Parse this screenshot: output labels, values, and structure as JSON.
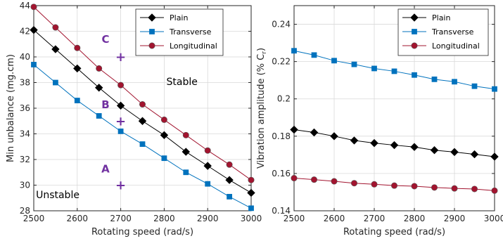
{
  "colors": {
    "plain": "#000000",
    "transverse": "#0072BD",
    "longitudinal": "#A2142F",
    "annotation": "#7030A0",
    "grid": "#d9d9d9",
    "axis": "#262626"
  },
  "chart_data": [
    {
      "type": "line",
      "xlabel": "Rotating speed (rad/s)",
      "ylabel": "Min unbalance (mg.cm)",
      "xlim": [
        2500,
        3000
      ],
      "ylim": [
        28,
        44
      ],
      "xticks": [
        2500,
        2600,
        2700,
        2800,
        2900,
        3000
      ],
      "yticks": [
        28,
        30,
        32,
        34,
        36,
        38,
        40,
        42,
        44
      ],
      "grid": true,
      "legend": "top-right",
      "x": [
        2500,
        2550,
        2600,
        2650,
        2700,
        2750,
        2800,
        2850,
        2900,
        2950,
        3000
      ],
      "series": [
        {
          "name": "Plain",
          "marker": "diamond",
          "color_key": "plain",
          "values": [
            42.1,
            40.6,
            39.1,
            37.6,
            36.2,
            35.0,
            33.9,
            32.6,
            31.5,
            30.4,
            29.4
          ]
        },
        {
          "name": "Transverse",
          "marker": "square",
          "color_key": "transverse",
          "values": [
            39.4,
            38.0,
            36.6,
            35.4,
            34.2,
            33.2,
            32.1,
            31.0,
            30.1,
            29.1,
            28.2
          ]
        },
        {
          "name": "Longitudinal",
          "marker": "circle",
          "color_key": "longitudinal",
          "values": [
            43.9,
            42.3,
            40.7,
            39.1,
            37.8,
            36.3,
            35.1,
            33.9,
            32.7,
            31.6,
            30.4
          ]
        }
      ],
      "annotations": [
        {
          "text": "C",
          "x": 2665,
          "y": 41.1,
          "style": "letter"
        },
        {
          "text": "+",
          "x": 2700,
          "y": 40.0,
          "style": "plus"
        },
        {
          "text": "B",
          "x": 2665,
          "y": 36.0,
          "style": "letter"
        },
        {
          "text": "+",
          "x": 2700,
          "y": 35.0,
          "style": "plus"
        },
        {
          "text": "A",
          "x": 2665,
          "y": 31.0,
          "style": "letter"
        },
        {
          "text": "+",
          "x": 2700,
          "y": 30.0,
          "style": "plus"
        },
        {
          "text": "Stable",
          "x": 2805,
          "y": 37.8,
          "style": "label"
        },
        {
          "text": "Unstable",
          "x": 2505,
          "y": 29.0,
          "style": "label"
        }
      ]
    },
    {
      "type": "line",
      "xlabel": "Rotating speed (rad/s)",
      "ylabel": "Vibration amplitude (% C",
      "ylabel_sub": "r",
      "ylabel_end": ")",
      "xlim": [
        2500,
        3000
      ],
      "ylim": [
        0.14,
        0.25
      ],
      "xticks": [
        2500,
        2600,
        2700,
        2800,
        2900,
        3000
      ],
      "yticks": [
        0.14,
        0.16,
        0.18,
        0.2,
        0.22,
        0.24
      ],
      "grid": true,
      "legend": "top-right",
      "x": [
        2500,
        2550,
        2600,
        2650,
        2700,
        2750,
        2800,
        2850,
        2900,
        2950,
        3000
      ],
      "series": [
        {
          "name": "Plain",
          "marker": "diamond",
          "color_key": "plain",
          "values": [
            0.1835,
            0.182,
            0.18,
            0.1777,
            0.1763,
            0.1752,
            0.1742,
            0.1725,
            0.1715,
            0.1703,
            0.169
          ]
        },
        {
          "name": "Transverse",
          "marker": "square",
          "color_key": "transverse",
          "values": [
            0.2258,
            0.2235,
            0.2205,
            0.2185,
            0.2163,
            0.2148,
            0.2128,
            0.2105,
            0.2092,
            0.2068,
            0.2053
          ]
        },
        {
          "name": "Longitudinal",
          "marker": "circle",
          "color_key": "longitudinal",
          "values": [
            0.1575,
            0.1567,
            0.1558,
            0.1548,
            0.1542,
            0.1535,
            0.1532,
            0.1525,
            0.152,
            0.1517,
            0.1508
          ]
        }
      ]
    }
  ]
}
